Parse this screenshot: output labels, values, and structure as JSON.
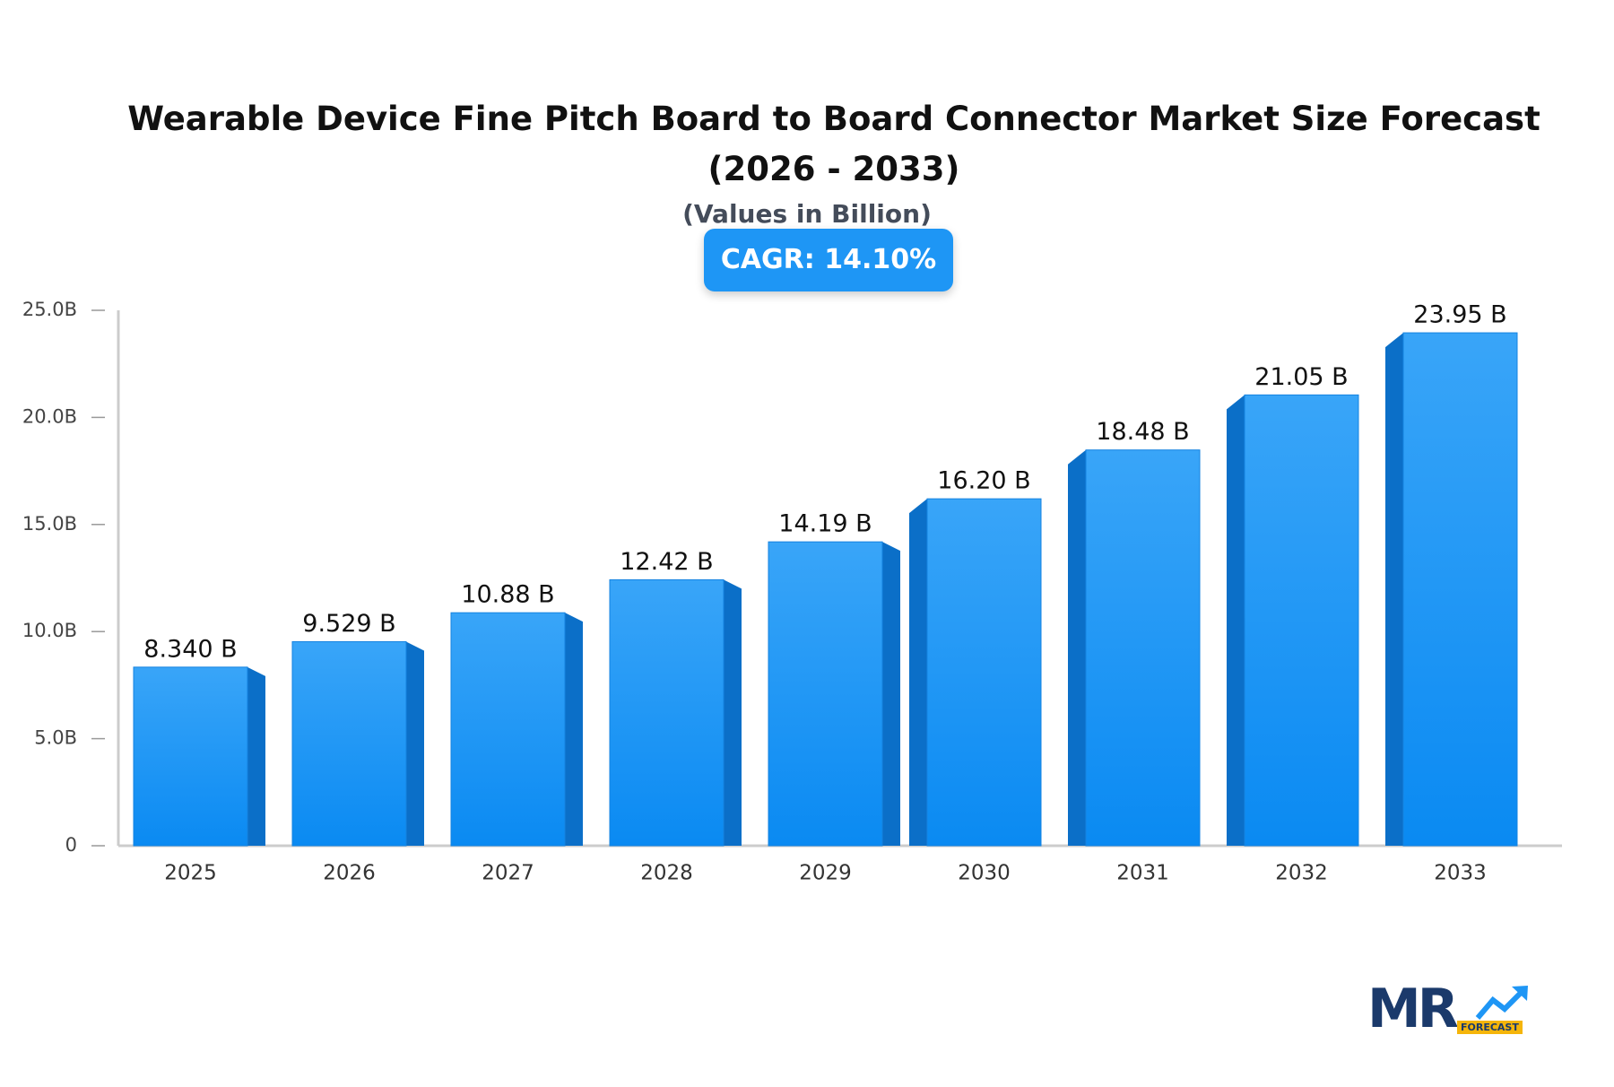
{
  "chart_data": {
    "type": "bar",
    "title": "Wearable Device Fine Pitch Board to Board Connector Market Size Forecast (2026 - 2033)",
    "subtitle": "(Values in Billion)",
    "badge": "CAGR: 14.10%",
    "categories": [
      "2025",
      "2026",
      "2027",
      "2028",
      "2029",
      "2030",
      "2031",
      "2032",
      "2033"
    ],
    "values": [
      8.34,
      9.529,
      10.88,
      12.42,
      14.19,
      16.2,
      18.48,
      21.05,
      23.95
    ],
    "value_labels": [
      "8.340 B",
      "9.529 B",
      "10.88 B",
      "12.42 B",
      "14.19 B",
      "16.20 B",
      "18.48 B",
      "21.05 B",
      "23.95 B"
    ],
    "color": "#1e96f5",
    "ylim": [
      0,
      25
    ],
    "yticks": [
      0,
      {
        "value": 5,
        "label": "5.0B"
      },
      {
        "value": 10,
        "label": "10.0B"
      },
      {
        "value": 15,
        "label": "15.0B"
      },
      {
        "value": 20,
        "label": "20.0B"
      },
      {
        "value": 25,
        "label": "25.0B"
      }
    ]
  },
  "logo": {
    "text": "MR",
    "subtext": "FORECAST"
  }
}
